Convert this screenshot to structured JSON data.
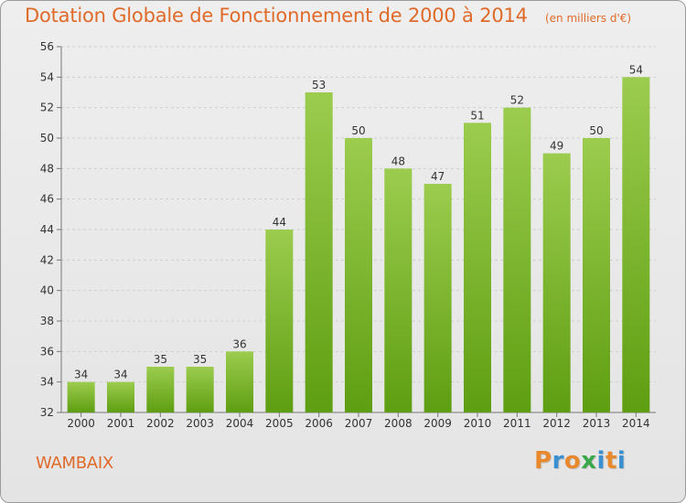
{
  "header": {
    "title": "Dotation Globale de Fonctionnement de 2000 à 2014",
    "subtitle": "(en milliers d'€)"
  },
  "footer": {
    "commune": "WAMBAIX",
    "logo": {
      "letters": [
        "P",
        "r",
        "o",
        "x",
        "i",
        "t",
        "i"
      ]
    }
  },
  "colors": {
    "title": "#e06a2a",
    "bar_top": "#9ccc4e",
    "bar_bottom": "#5e9e12",
    "logo": [
      "#e8892e",
      "#3a8fd0",
      "#e8892e",
      "#3aa84a",
      "#3a8fd0",
      "#e8892e",
      "#3a8fd0"
    ]
  },
  "chart_data": {
    "type": "bar",
    "categories": [
      "2000",
      "2001",
      "2002",
      "2003",
      "2004",
      "2005",
      "2006",
      "2007",
      "2008",
      "2009",
      "2010",
      "2011",
      "2012",
      "2013",
      "2014"
    ],
    "values": [
      34,
      34,
      35,
      35,
      36,
      44,
      53,
      50,
      48,
      47,
      51,
      52,
      49,
      50,
      54
    ],
    "ylim": [
      32,
      56
    ],
    "yticks": [
      32,
      34,
      36,
      38,
      40,
      42,
      44,
      46,
      48,
      50,
      52,
      54,
      56
    ],
    "grid": true,
    "data_labels": true
  }
}
